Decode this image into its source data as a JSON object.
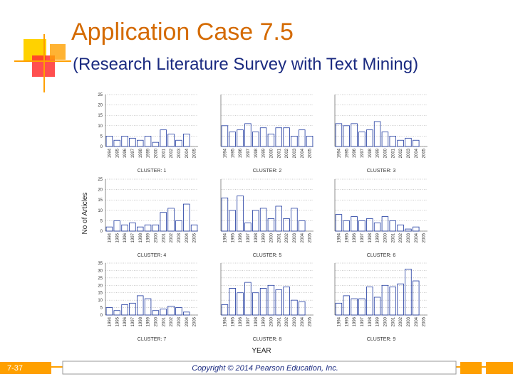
{
  "slide": {
    "title": "Application Case 7.5",
    "subtitle": "(Research Literature Survey with Text Mining)",
    "page_number": "7-37",
    "copyright": "Copyright © 2014 Pearson Education, Inc.",
    "ylabel": "No of Articles",
    "xlabel": "YEAR"
  },
  "chart_data": [
    {
      "type": "bar",
      "title": "CLUSTER: 1",
      "categories": [
        "1994",
        "1995",
        "1996",
        "1997",
        "1998",
        "1999",
        "2000",
        "2001",
        "2002",
        "2003",
        "2004",
        "2005"
      ],
      "values": [
        5,
        3,
        5,
        4,
        3,
        5,
        2,
        8,
        6,
        3,
        6,
        0
      ],
      "ylim": [
        0,
        25
      ],
      "yticks": [
        0,
        5,
        10,
        15,
        20,
        25
      ],
      "ytick_labels": true,
      "grid": true,
      "color": "#1f3aa0"
    },
    {
      "type": "bar",
      "title": "CLUSTER: 2",
      "categories": [
        "1994",
        "1995",
        "1996",
        "1997",
        "1998",
        "1999",
        "2000",
        "2001",
        "2002",
        "2003",
        "2004",
        "2005"
      ],
      "values": [
        10,
        7,
        8,
        11,
        7,
        9,
        6,
        9,
        9,
        5,
        8,
        5
      ],
      "ylim": [
        0,
        25
      ],
      "yticks": [
        0,
        5,
        10,
        15,
        20,
        25
      ],
      "ytick_labels": false,
      "grid": true,
      "color": "#1f3aa0"
    },
    {
      "type": "bar",
      "title": "CLUSTER: 3",
      "categories": [
        "1994",
        "1995",
        "1996",
        "1997",
        "1998",
        "1999",
        "2000",
        "2001",
        "2002",
        "2003",
        "2004",
        "2005"
      ],
      "values": [
        11,
        10,
        11,
        7,
        8,
        12,
        7,
        5,
        3,
        4,
        3,
        0
      ],
      "ylim": [
        0,
        25
      ],
      "yticks": [
        0,
        5,
        10,
        15,
        20,
        25
      ],
      "ytick_labels": false,
      "grid": true,
      "color": "#1f3aa0"
    },
    {
      "type": "bar",
      "title": "CLUSTER: 4",
      "categories": [
        "1994",
        "1995",
        "1996",
        "1997",
        "1998",
        "1999",
        "2000",
        "2001",
        "2002",
        "2003",
        "2004",
        "2005"
      ],
      "values": [
        2,
        5,
        3,
        4,
        2,
        3,
        3,
        9,
        11,
        5,
        13,
        3
      ],
      "ylim": [
        0,
        25
      ],
      "yticks": [
        0,
        5,
        10,
        15,
        20,
        25
      ],
      "ytick_labels": true,
      "grid": true,
      "color": "#1f3aa0"
    },
    {
      "type": "bar",
      "title": "CLUSTER: 5",
      "categories": [
        "1994",
        "1995",
        "1996",
        "1997",
        "1998",
        "1999",
        "2000",
        "2001",
        "2002",
        "2003",
        "2004",
        "2005"
      ],
      "values": [
        16,
        10,
        17,
        4,
        10,
        11,
        6,
        12,
        6,
        11,
        5,
        0
      ],
      "ylim": [
        0,
        25
      ],
      "yticks": [
        0,
        5,
        10,
        15,
        20,
        25
      ],
      "ytick_labels": false,
      "grid": true,
      "color": "#1f3aa0"
    },
    {
      "type": "bar",
      "title": "CLUSTER: 6",
      "categories": [
        "1994",
        "1995",
        "1996",
        "1997",
        "1998",
        "1999",
        "2000",
        "2001",
        "2002",
        "2003",
        "2004",
        "2005"
      ],
      "values": [
        8,
        5,
        7,
        5,
        6,
        4,
        7,
        5,
        3,
        1,
        2,
        0
      ],
      "ylim": [
        0,
        25
      ],
      "yticks": [
        0,
        5,
        10,
        15,
        20,
        25
      ],
      "ytick_labels": false,
      "grid": true,
      "color": "#1f3aa0"
    },
    {
      "type": "bar",
      "title": "CLUSTER: 7",
      "categories": [
        "1994",
        "1995",
        "1996",
        "1997",
        "1998",
        "1999",
        "2000",
        "2001",
        "2002",
        "2003",
        "2004",
        "2005"
      ],
      "values": [
        5,
        3,
        7,
        8,
        13,
        11,
        3,
        4,
        6,
        5,
        2,
        0
      ],
      "ylim": [
        0,
        35
      ],
      "yticks": [
        0,
        5,
        10,
        15,
        20,
        25,
        30,
        35
      ],
      "ytick_labels": true,
      "grid": true,
      "color": "#1f3aa0"
    },
    {
      "type": "bar",
      "title": "CLUSTER: 8",
      "categories": [
        "1994",
        "1995",
        "1996",
        "1997",
        "1998",
        "1999",
        "2000",
        "2001",
        "2002",
        "2003",
        "2004",
        "2005"
      ],
      "values": [
        7,
        18,
        15,
        22,
        15,
        18,
        20,
        17,
        19,
        10,
        9,
        0
      ],
      "ylim": [
        0,
        35
      ],
      "yticks": [
        0,
        5,
        10,
        15,
        20,
        25,
        30,
        35
      ],
      "ytick_labels": false,
      "grid": true,
      "color": "#1f3aa0"
    },
    {
      "type": "bar",
      "title": "CLUSTER: 9",
      "categories": [
        "1994",
        "1995",
        "1996",
        "1997",
        "1998",
        "1999",
        "2000",
        "2001",
        "2002",
        "2003",
        "2004",
        "2005"
      ],
      "values": [
        8,
        13,
        11,
        11,
        19,
        12,
        20,
        19,
        21,
        31,
        23,
        0
      ],
      "ylim": [
        0,
        35
      ],
      "yticks": [
        0,
        5,
        10,
        15,
        20,
        25,
        30,
        35
      ],
      "ytick_labels": false,
      "grid": true,
      "color": "#1f3aa0"
    }
  ]
}
